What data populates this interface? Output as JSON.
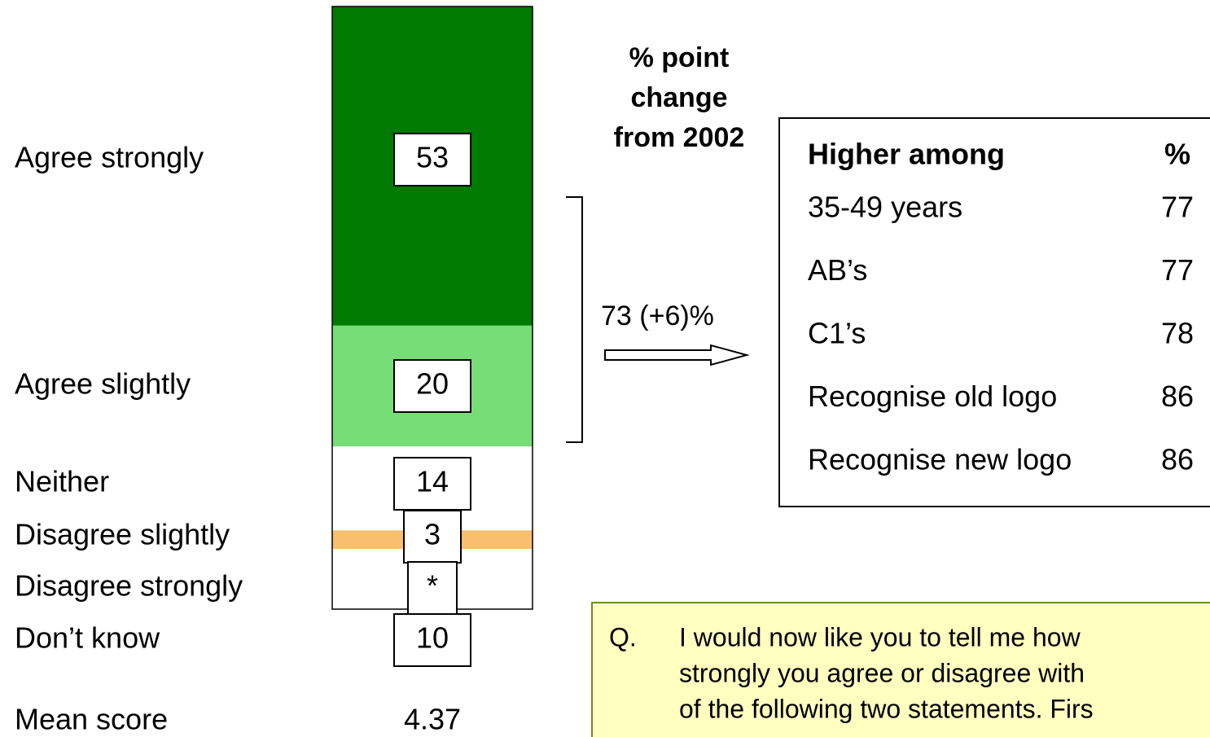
{
  "chart_data": {
    "type": "bar",
    "categories": [
      "Agree strongly",
      "Agree slightly",
      "Neither",
      "Disagree slightly",
      "Disagree strongly",
      "Don’t know"
    ],
    "values": [
      53,
      20,
      14,
      3,
      0,
      10
    ],
    "value_labels": [
      "53",
      "20",
      "14",
      "3",
      "*",
      "10"
    ],
    "colors": [
      "#007a00",
      "#77dd77",
      "#ffffff",
      "#f9bf6f",
      "#ffffff",
      "#ffffff"
    ],
    "ylim": [
      0,
      100
    ],
    "mean_label": "Mean score",
    "mean_value": "4.37",
    "change_header": [
      "% point",
      "change",
      "from 2002"
    ],
    "annotation": "73 (+6)%"
  },
  "table": {
    "header": [
      "Higher among",
      "%"
    ],
    "rows": [
      [
        "35-49 years",
        "77"
      ],
      [
        "AB’s",
        "77"
      ],
      [
        "C1’s",
        "78"
      ],
      [
        "Recognise old logo",
        "86"
      ],
      [
        "Recognise new logo",
        "86"
      ]
    ]
  },
  "question": {
    "marker": "Q.",
    "lines": [
      "I would now like you to tell me how",
      "strongly you agree or disagree with",
      "of the following two statements.  Firs"
    ]
  }
}
